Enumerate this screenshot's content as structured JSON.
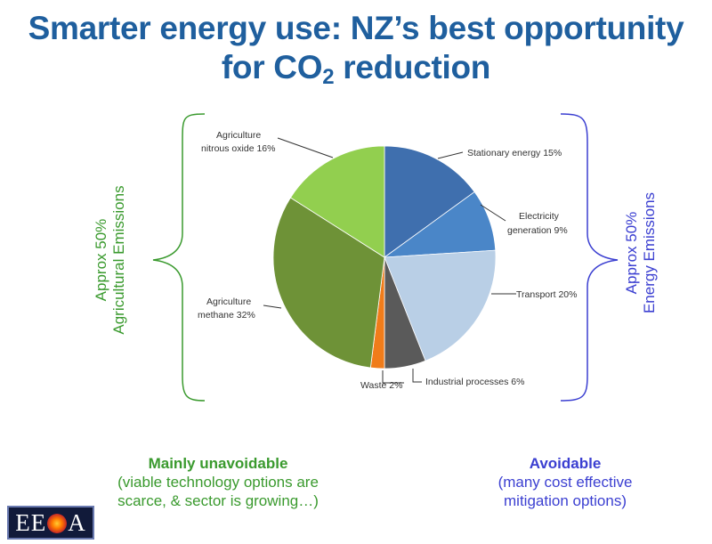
{
  "title": {
    "line1": "Smarter energy use: NZ’s best opportunity",
    "line2_pre": "for CO",
    "line2_sub": "2",
    "line2_post": " reduction"
  },
  "chart_data": {
    "type": "pie",
    "slices": [
      {
        "label": "Stationary energy 15%",
        "value": 15,
        "color": "#3f6fae"
      },
      {
        "label": "Electricity generation 9%",
        "value": 9,
        "color": "#4a86c8"
      },
      {
        "label": "Transport 20%",
        "value": 20,
        "color": "#b9cfe6"
      },
      {
        "label": "Industrial processes 6%",
        "value": 6,
        "color": "#5a5a5a"
      },
      {
        "label": "Waste 2%",
        "value": 2,
        "color": "#f07c1a"
      },
      {
        "label": "Agriculture methane 32%",
        "value": 32,
        "color": "#6e9237"
      },
      {
        "label": "Agriculture nitrous oxide 16%",
        "value": 16,
        "color": "#92cf4f"
      }
    ],
    "labels": {
      "stationary": "Stationary energy 15%",
      "electricity_1": "Electricity",
      "electricity_2": "generation 9%",
      "transport": "Transport 20%",
      "industrial": "Industrial processes 6%",
      "waste": "Waste 2%",
      "methane_1": "Agriculture",
      "methane_2": "methane 32%",
      "nitrous_1": "Agriculture",
      "nitrous_2": "nitrous oxide 16%"
    }
  },
  "left_side": {
    "line1": "Approx 50%",
    "line2": "Agricultural Emissions",
    "color": "#3a9a2e"
  },
  "right_side": {
    "line1": "Approx 50%",
    "line2": "Energy Emissions",
    "color": "#3b3fd1"
  },
  "bottom_left": {
    "head": "Mainly unavoidable",
    "line1": "(viable technology options are",
    "line2": "scarce, & sector is growing…)"
  },
  "bottom_right": {
    "head": "Avoidable",
    "line1": "(many cost effective",
    "line2": "mitigation options)"
  },
  "logo": {
    "left": "EE",
    "right": "A"
  }
}
